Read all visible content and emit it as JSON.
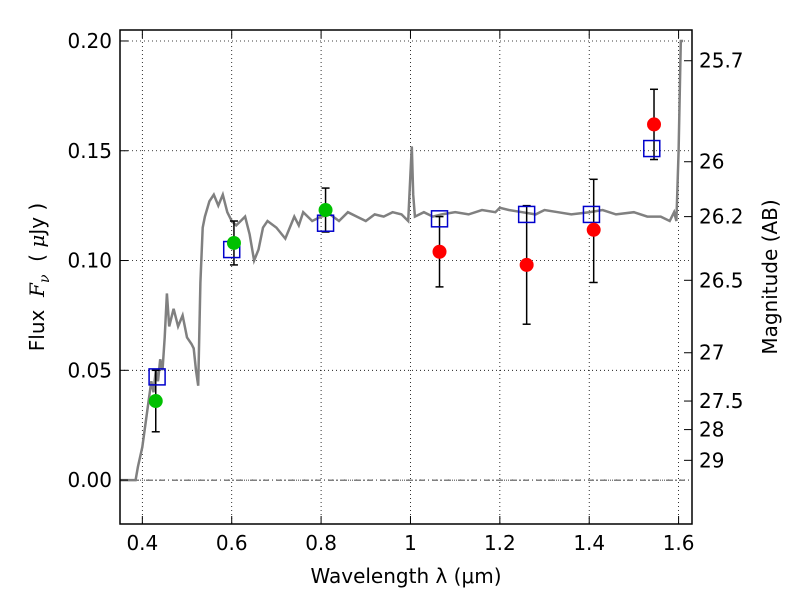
{
  "chart_data": {
    "type": "scatter",
    "xlabel": "Wavelength  λ (μm)",
    "ylabel": "Flux  F_ν  ( μJy )",
    "ylabel_parts": [
      "Flux  ",
      "F",
      "ν",
      "  ( ",
      "μ",
      "Jy )"
    ],
    "y2label": "Magnitude (AB)",
    "xlim": [
      0.35,
      1.63
    ],
    "ylim": [
      -0.02,
      0.205
    ],
    "grid": true,
    "x_ticks": [
      0.4,
      0.6,
      0.8,
      1.0,
      1.2,
      1.4,
      1.6
    ],
    "x_tick_labels": [
      "0.4",
      "0.6",
      "0.8",
      "1",
      "1.2",
      "1.4",
      "1.6"
    ],
    "y_ticks": [
      0.0,
      0.05,
      0.1,
      0.15,
      0.2
    ],
    "y_tick_labels": [
      "0.00",
      "0.05",
      "0.10",
      "0.15",
      "0.20"
    ],
    "y2_ticks": [
      {
        "label": "25.7",
        "flux": 0.191
      },
      {
        "label": "26",
        "flux": 0.145
      },
      {
        "label": "26.2",
        "flux": 0.12
      },
      {
        "label": "26.5",
        "flux": 0.091
      },
      {
        "label": "27",
        "flux": 0.058
      },
      {
        "label": "27.5",
        "flux": 0.036
      },
      {
        "label": "28",
        "flux": 0.023
      },
      {
        "label": "29",
        "flux": 0.009
      }
    ],
    "series": [
      {
        "kind": "line",
        "color": "#808080",
        "x": [
          0.35,
          0.385,
          0.39,
          0.4,
          0.41,
          0.42,
          0.425,
          0.43,
          0.435,
          0.44,
          0.445,
          0.45,
          0.455,
          0.46,
          0.47,
          0.48,
          0.49,
          0.5,
          0.51,
          0.515,
          0.52,
          0.525,
          0.53,
          0.535,
          0.54,
          0.55,
          0.56,
          0.57,
          0.58,
          0.59,
          0.6,
          0.61,
          0.62,
          0.63,
          0.64,
          0.65,
          0.66,
          0.67,
          0.68,
          0.7,
          0.72,
          0.74,
          0.75,
          0.76,
          0.78,
          0.8,
          0.82,
          0.84,
          0.86,
          0.88,
          0.9,
          0.92,
          0.94,
          0.96,
          0.98,
          0.995,
          1.0,
          1.003,
          1.006,
          1.01,
          1.03,
          1.05,
          1.07,
          1.1,
          1.13,
          1.16,
          1.19,
          1.2,
          1.22,
          1.25,
          1.28,
          1.3,
          1.33,
          1.36,
          1.4,
          1.43,
          1.46,
          1.5,
          1.53,
          1.56,
          1.58,
          1.59,
          1.595,
          1.6,
          1.605,
          1.61
        ],
        "y": [
          0.0,
          0.0,
          0.006,
          0.015,
          0.03,
          0.045,
          0.04,
          0.05,
          0.045,
          0.055,
          0.05,
          0.065,
          0.085,
          0.07,
          0.078,
          0.07,
          0.075,
          0.065,
          0.062,
          0.06,
          0.05,
          0.043,
          0.09,
          0.115,
          0.12,
          0.127,
          0.13,
          0.125,
          0.13,
          0.122,
          0.118,
          0.116,
          0.118,
          0.12,
          0.112,
          0.1,
          0.105,
          0.115,
          0.118,
          0.115,
          0.11,
          0.12,
          0.116,
          0.122,
          0.118,
          0.12,
          0.121,
          0.118,
          0.122,
          0.12,
          0.118,
          0.121,
          0.12,
          0.122,
          0.121,
          0.118,
          0.14,
          0.152,
          0.13,
          0.12,
          0.122,
          0.12,
          0.121,
          0.122,
          0.121,
          0.123,
          0.122,
          0.124,
          0.123,
          0.122,
          0.121,
          0.123,
          0.122,
          0.121,
          0.122,
          0.123,
          0.121,
          0.122,
          0.12,
          0.12,
          0.118,
          0.122,
          0.118,
          0.15,
          0.2,
          0.2
        ]
      },
      {
        "kind": "points",
        "marker": "filled-circle",
        "color": "#00c000",
        "x": [
          0.43,
          0.605,
          0.81
        ],
        "y": [
          0.036,
          0.108,
          0.123
        ],
        "err_low": [
          0.014,
          0.01,
          0.01
        ],
        "err_high": [
          0.014,
          0.01,
          0.01
        ]
      },
      {
        "kind": "points",
        "marker": "filled-circle",
        "color": "#ff0000",
        "x": [
          1.065,
          1.26,
          1.41,
          1.545
        ],
        "y": [
          0.104,
          0.098,
          0.114,
          0.162
        ],
        "err_low": [
          0.016,
          0.027,
          0.024,
          0.016
        ],
        "err_high": [
          0.016,
          0.027,
          0.023,
          0.016
        ]
      },
      {
        "kind": "points",
        "marker": "open-square",
        "color": "#0000cc",
        "x": [
          0.433,
          0.6,
          0.81,
          1.065,
          1.26,
          1.405,
          1.54
        ],
        "y": [
          0.047,
          0.105,
          0.117,
          0.119,
          0.121,
          0.121,
          0.151
        ]
      }
    ]
  }
}
